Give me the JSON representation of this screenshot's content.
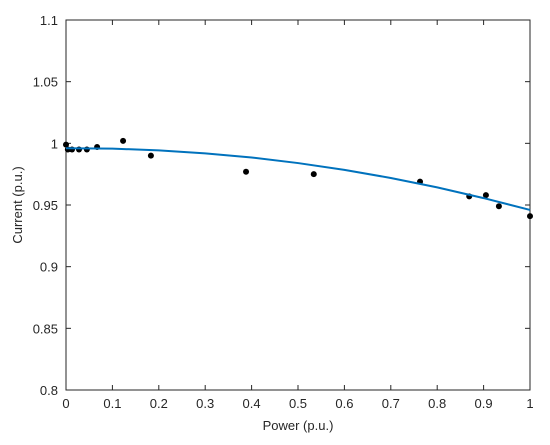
{
  "chart_data": {
    "type": "scatter",
    "x_label": "Power (p.u.)",
    "y_label": "Current (p.u.)",
    "xlim": [
      0,
      1
    ],
    "ylim": [
      0.8,
      1.1
    ],
    "xticks": [
      0,
      0.1,
      0.2,
      0.3,
      0.4,
      0.5,
      0.6,
      0.7,
      0.8,
      0.9,
      1
    ],
    "yticks": [
      0.8,
      0.85,
      0.9,
      0.95,
      1,
      1.05,
      1.1
    ],
    "series": [
      {
        "type": "scatter",
        "color": "#000000",
        "x": [
          0,
          0.004,
          0.013,
          0.028,
          0.045,
          0.067,
          0.123,
          0.183,
          0.388,
          0.534,
          0.763,
          0.869,
          0.905,
          0.933,
          1.0
        ],
        "values": [
          0.999,
          0.995,
          0.995,
          0.995,
          0.995,
          0.997,
          1.002,
          0.99,
          0.977,
          0.975,
          0.969,
          0.957,
          0.958,
          0.949,
          0.941
        ]
      },
      {
        "type": "line",
        "color": "#0072bd",
        "x": [
          0,
          0.1,
          0.2,
          0.3,
          0.4,
          0.5,
          0.6,
          0.7,
          0.8,
          0.9,
          1
        ],
        "values": [
          0.996,
          0.9957,
          0.9943,
          0.9919,
          0.9885,
          0.984,
          0.9785,
          0.9719,
          0.9643,
          0.9556,
          0.946
        ]
      }
    ]
  }
}
